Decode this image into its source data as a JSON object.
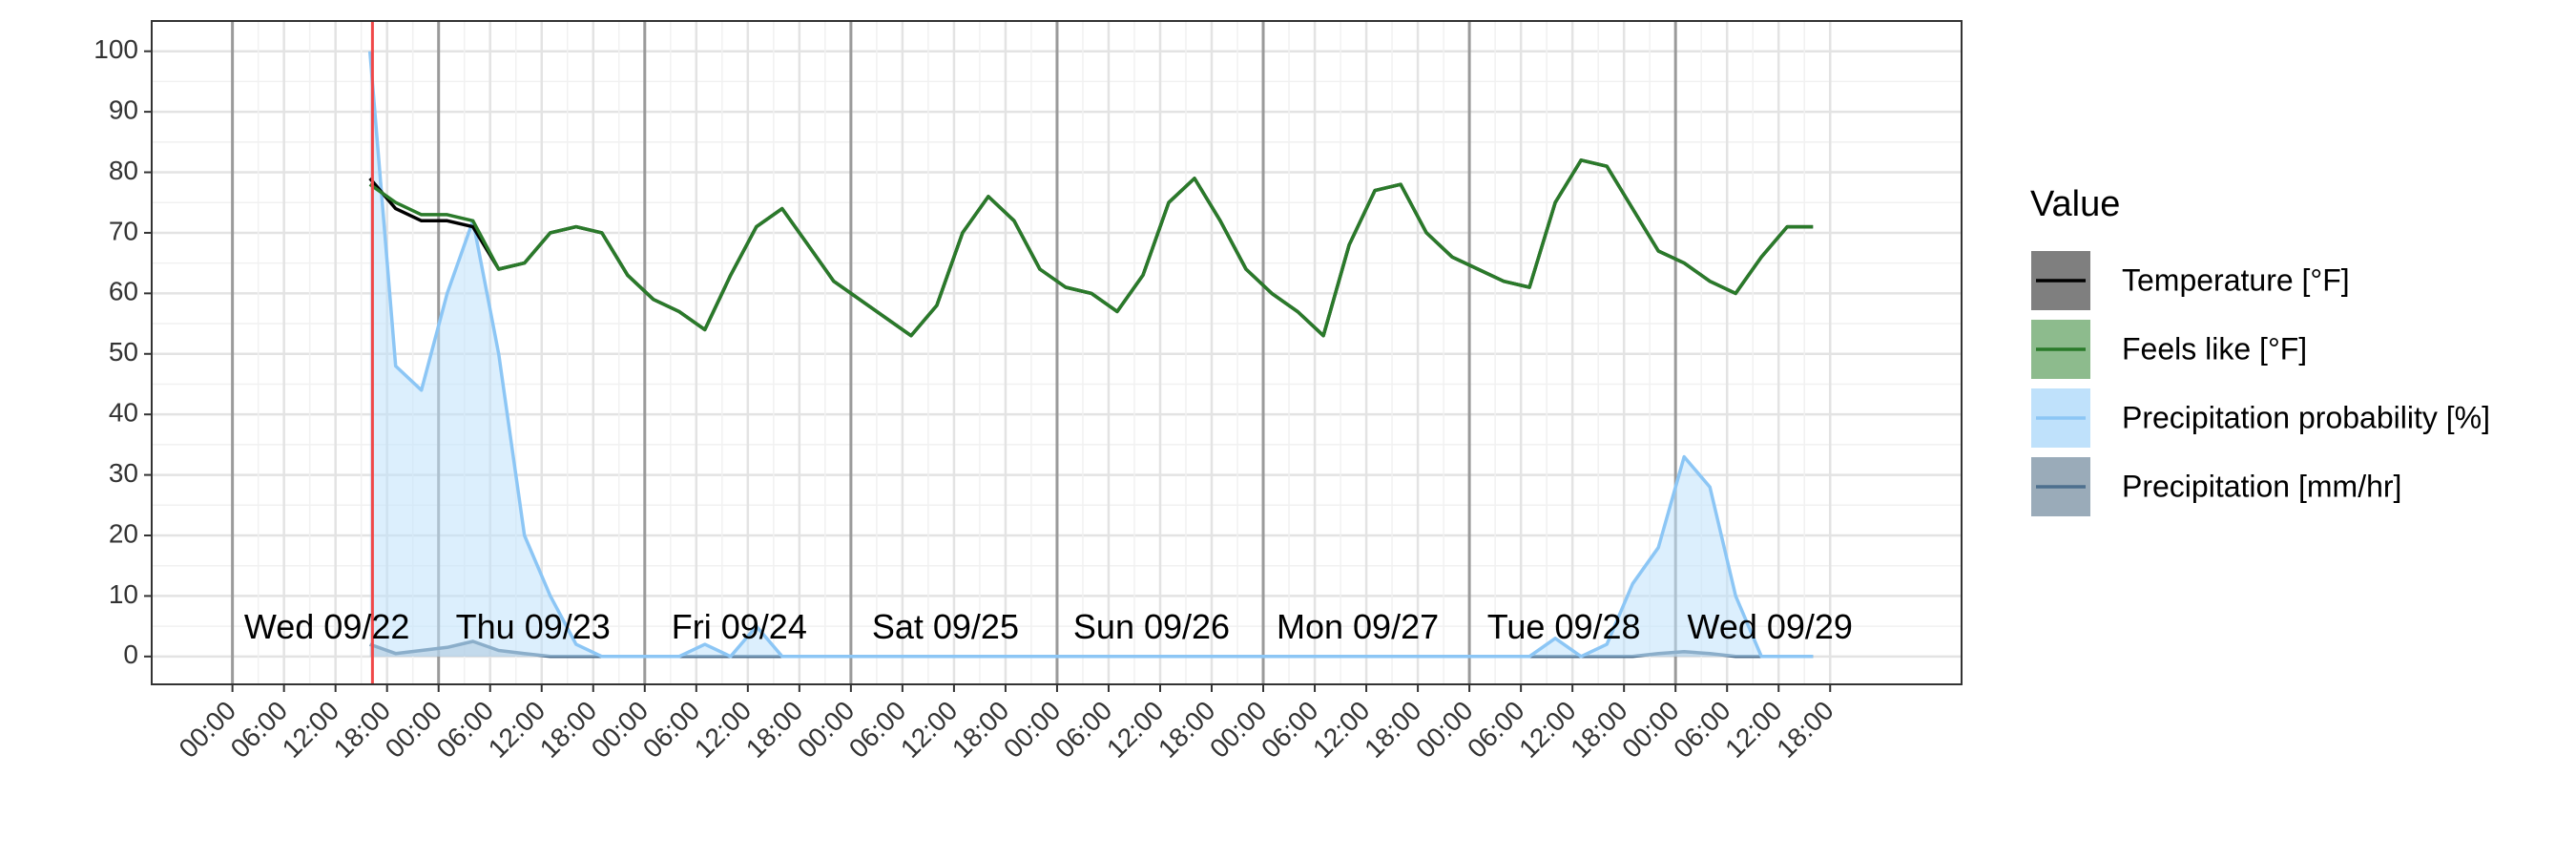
{
  "chart_data": {
    "type": "line",
    "x": [
      16,
      19,
      22,
      25,
      28,
      31,
      34,
      37,
      40,
      43,
      46,
      49,
      52,
      55,
      58,
      61,
      64,
      67,
      70,
      73,
      76,
      79,
      82,
      85,
      88,
      91,
      94,
      97,
      100,
      103,
      106,
      109,
      112,
      115,
      118,
      121,
      124,
      127,
      130,
      133,
      136,
      139,
      142,
      145,
      148,
      151,
      154,
      157,
      160,
      163,
      166,
      169,
      172,
      175,
      178,
      181,
      184
    ],
    "series": [
      {
        "name": "Temperature [°F]",
        "color": "#000000",
        "fill": "#7f7f7f",
        "values": [
          79,
          74,
          72,
          72,
          71,
          64,
          65,
          70,
          71,
          70,
          63,
          59,
          57,
          54,
          63,
          71,
          74,
          68,
          62,
          59,
          56,
          53,
          58,
          70,
          76,
          72,
          64,
          61,
          60,
          57,
          63,
          75,
          79,
          72,
          64,
          60,
          57,
          53,
          68,
          77,
          78,
          70,
          66,
          64,
          62,
          61,
          75,
          82,
          81,
          74,
          67,
          65,
          62,
          60,
          66,
          71,
          71
        ]
      },
      {
        "name": "Feels like [°F]",
        "color": "#2a7a2a",
        "fill": "#8dbb8d",
        "values": [
          78,
          75,
          73,
          73,
          72,
          64,
          65,
          70,
          71,
          70,
          63,
          59,
          57,
          54,
          63,
          71,
          74,
          68,
          62,
          59,
          56,
          53,
          58,
          70,
          76,
          72,
          64,
          61,
          60,
          57,
          63,
          75,
          79,
          72,
          64,
          60,
          57,
          53,
          68,
          77,
          78,
          70,
          66,
          64,
          62,
          61,
          75,
          82,
          81,
          74,
          67,
          65,
          62,
          60,
          66,
          71,
          71
        ]
      },
      {
        "name": "Precipitation probability [%]",
        "color": "#8cc6f5",
        "fill": "#bfe1fb",
        "area": true,
        "values": [
          100,
          48,
          44,
          60,
          72,
          50,
          20,
          10,
          2,
          0,
          0,
          0,
          0,
          2,
          0,
          5,
          0,
          0,
          0,
          0,
          0,
          0,
          0,
          0,
          0,
          0,
          0,
          0,
          0,
          0,
          0,
          0,
          0,
          0,
          0,
          0,
          0,
          0,
          0,
          0,
          0,
          0,
          0,
          0,
          0,
          0,
          3,
          0,
          2,
          12,
          18,
          33,
          28,
          10,
          0,
          0,
          0
        ]
      },
      {
        "name": "Precipitation [mm/hr]",
        "color": "#4d6f8e",
        "fill": "#9aabb9",
        "area": true,
        "values": [
          2,
          0.5,
          1,
          1.5,
          2.5,
          1,
          0.5,
          0,
          0,
          0,
          0,
          0,
          0,
          0,
          0,
          0,
          0,
          0,
          0,
          0,
          0,
          0,
          0,
          0,
          0,
          0,
          0,
          0,
          0,
          0,
          0,
          0,
          0,
          0,
          0,
          0,
          0,
          0,
          0,
          0,
          0,
          0,
          0,
          0,
          0,
          0,
          0,
          0,
          0,
          0,
          0.5,
          0.8,
          0.5,
          0,
          0,
          0,
          0
        ]
      }
    ],
    "day_labels": [
      "Wed 09/22",
      "Thu 09/23",
      "Fri 09/24",
      "Sat 09/25",
      "Sun 09/26",
      "Mon 09/27",
      "Tue 09/28",
      "Wed 09/29"
    ],
    "now_line": 16.3,
    "legend_title": "Value",
    "legend": "right",
    "grid": true,
    "xlim": [
      -9.4,
      201.3
    ],
    "ylim": [
      -4.6,
      105
    ],
    "yticks": [
      0,
      10,
      20,
      30,
      40,
      50,
      60,
      70,
      80,
      90,
      100
    ],
    "xticks": [
      {
        "value": 0,
        "label": "00:00"
      },
      {
        "value": 6,
        "label": "06:00"
      },
      {
        "value": 12,
        "label": "12:00"
      },
      {
        "value": 18,
        "label": "18:00"
      },
      {
        "value": 24,
        "label": "00:00"
      },
      {
        "value": 30,
        "label": "06:00"
      },
      {
        "value": 36,
        "label": "12:00"
      },
      {
        "value": 42,
        "label": "18:00"
      },
      {
        "value": 48,
        "label": "00:00"
      },
      {
        "value": 54,
        "label": "06:00"
      },
      {
        "value": 60,
        "label": "12:00"
      },
      {
        "value": 66,
        "label": "18:00"
      },
      {
        "value": 72,
        "label": "00:00"
      },
      {
        "value": 78,
        "label": "06:00"
      },
      {
        "value": 84,
        "label": "12:00"
      },
      {
        "value": 90,
        "label": "18:00"
      },
      {
        "value": 96,
        "label": "00:00"
      },
      {
        "value": 102,
        "label": "06:00"
      },
      {
        "value": 108,
        "label": "12:00"
      },
      {
        "value": 114,
        "label": "18:00"
      },
      {
        "value": 120,
        "label": "00:00"
      },
      {
        "value": 126,
        "label": "06:00"
      },
      {
        "value": 132,
        "label": "12:00"
      },
      {
        "value": 138,
        "label": "18:00"
      },
      {
        "value": 144,
        "label": "00:00"
      },
      {
        "value": 150,
        "label": "06:00"
      },
      {
        "value": 156,
        "label": "12:00"
      },
      {
        "value": 162,
        "label": "18:00"
      },
      {
        "value": 168,
        "label": "00:00"
      },
      {
        "value": 174,
        "label": "06:00"
      },
      {
        "value": 180,
        "label": "12:00"
      },
      {
        "value": 186,
        "label": "18:00"
      }
    ]
  }
}
